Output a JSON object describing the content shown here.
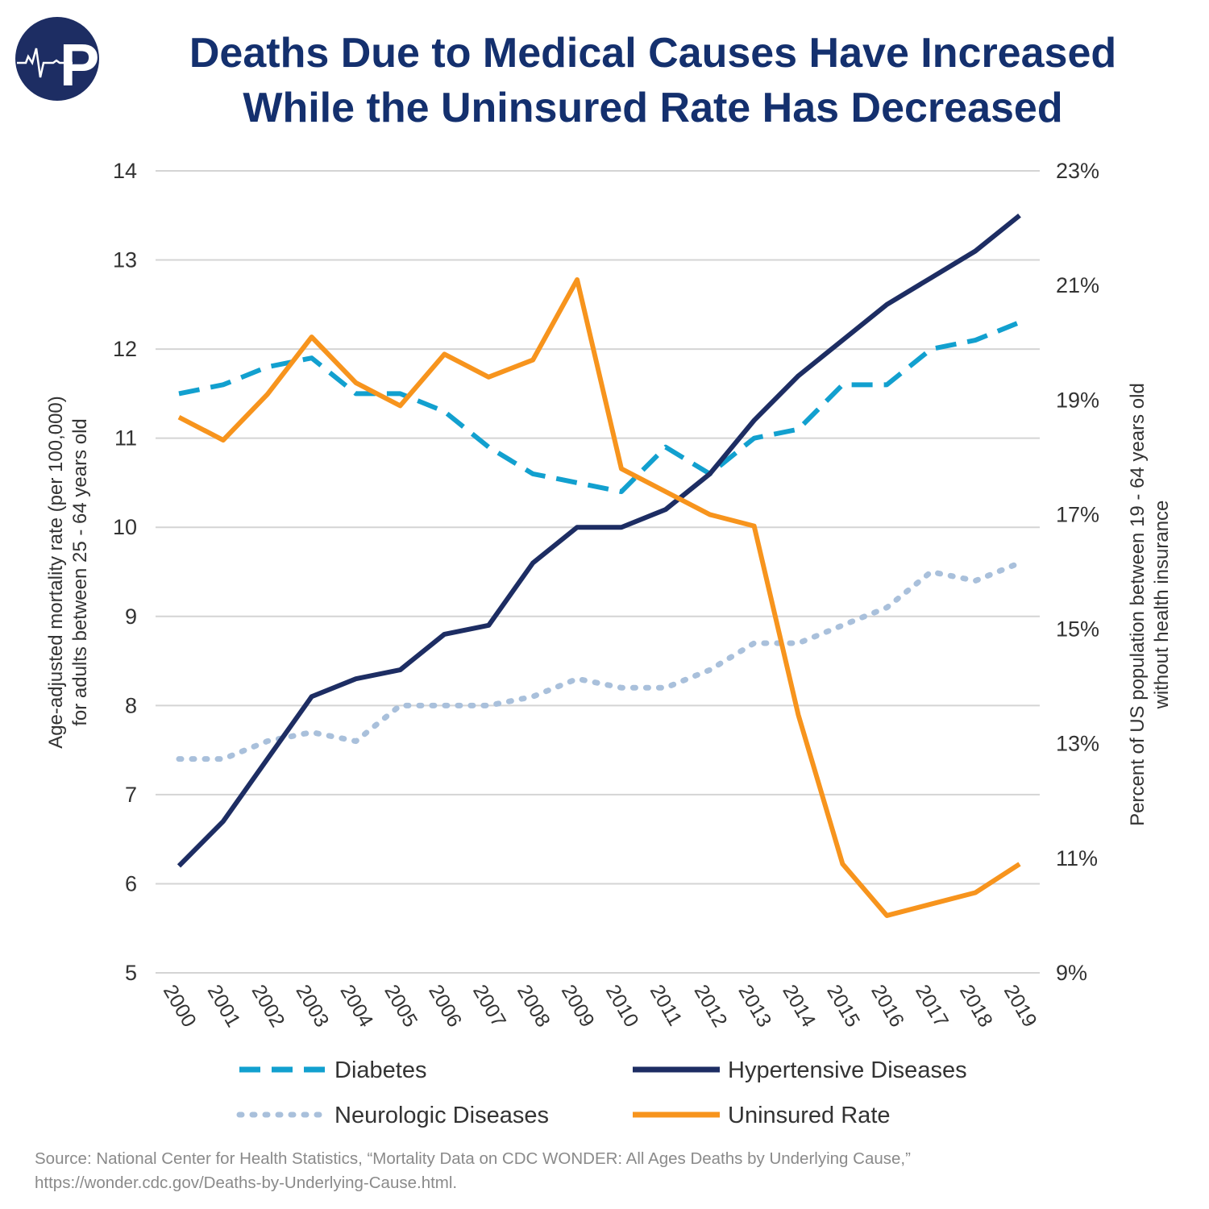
{
  "title_line1": "Deaths Due to Medical Causes Have Increased",
  "title_line2": "While the Uninsured Rate Has Decreased",
  "logo_text": "P",
  "source_line1": "Source: National Center for Health Statistics, “Mortality Data on CDC WONDER: All Ages Deaths by Underlying Cause,”",
  "source_line2": "https://wonder.cdc.gov/Deaths-by-Underlying-Cause.html.",
  "chart_data": {
    "type": "line",
    "title": "Deaths Due to Medical Causes Have Increased While the Uninsured Rate Has Decreased",
    "ylabel_line1": "Age-adjusted mortality rate (per 100,000)",
    "ylabel_line2": "for adults between 25 - 64 years old",
    "y2label_line1": "Percent of US population between 19 - 64 years old",
    "y2label_line2": "without health insurance",
    "x": [
      "2000",
      "2001",
      "2002",
      "2003",
      "2004",
      "2005",
      "2006",
      "2007",
      "2008",
      "2009",
      "2010",
      "2011",
      "2012",
      "2013",
      "2014",
      "2015",
      "2016",
      "2017",
      "2018",
      "2019"
    ],
    "ylim": [
      5,
      14
    ],
    "yticks": [
      "5",
      "6",
      "7",
      "8",
      "9",
      "10",
      "11",
      "12",
      "13",
      "14"
    ],
    "y2lim": [
      9,
      23
    ],
    "y2ticks": [
      "9%",
      "11%",
      "13%",
      "15%",
      "17%",
      "19%",
      "21%",
      "23%"
    ],
    "grid": true,
    "legend_position": "bottom",
    "series": [
      {
        "name": "Diabetes",
        "axis": "left",
        "color": "#12a0cf",
        "style": "dashed",
        "values": [
          11.5,
          11.6,
          11.8,
          11.9,
          11.5,
          11.5,
          11.3,
          10.9,
          10.6,
          10.5,
          10.4,
          10.9,
          10.6,
          11.0,
          11.1,
          11.6,
          11.6,
          12.0,
          12.1,
          12.3
        ]
      },
      {
        "name": "Hypertensive Diseases",
        "axis": "left",
        "color": "#1d2d63",
        "style": "solid",
        "values": [
          6.2,
          6.7,
          7.4,
          8.1,
          8.3,
          8.4,
          8.8,
          8.9,
          9.6,
          10.0,
          10.0,
          10.2,
          10.6,
          11.2,
          11.7,
          12.1,
          12.5,
          12.8,
          13.1,
          13.5
        ]
      },
      {
        "name": "Neurologic Diseases",
        "axis": "left",
        "color": "#a9c0db",
        "style": "dotted",
        "values": [
          7.4,
          7.4,
          7.6,
          7.7,
          7.6,
          8.0,
          8.0,
          8.0,
          8.1,
          8.3,
          8.2,
          8.2,
          8.4,
          8.7,
          8.7,
          8.9,
          9.1,
          9.5,
          9.4,
          9.6
        ]
      },
      {
        "name": "Uninsured Rate",
        "axis": "right",
        "color": "#f7941d",
        "style": "solid",
        "values": [
          18.7,
          18.3,
          19.1,
          20.1,
          19.3,
          18.9,
          19.8,
          19.4,
          19.7,
          21.1,
          17.8,
          17.4,
          17.0,
          16.8,
          13.5,
          10.9,
          10.0,
          10.2,
          10.4,
          10.9
        ]
      }
    ]
  }
}
